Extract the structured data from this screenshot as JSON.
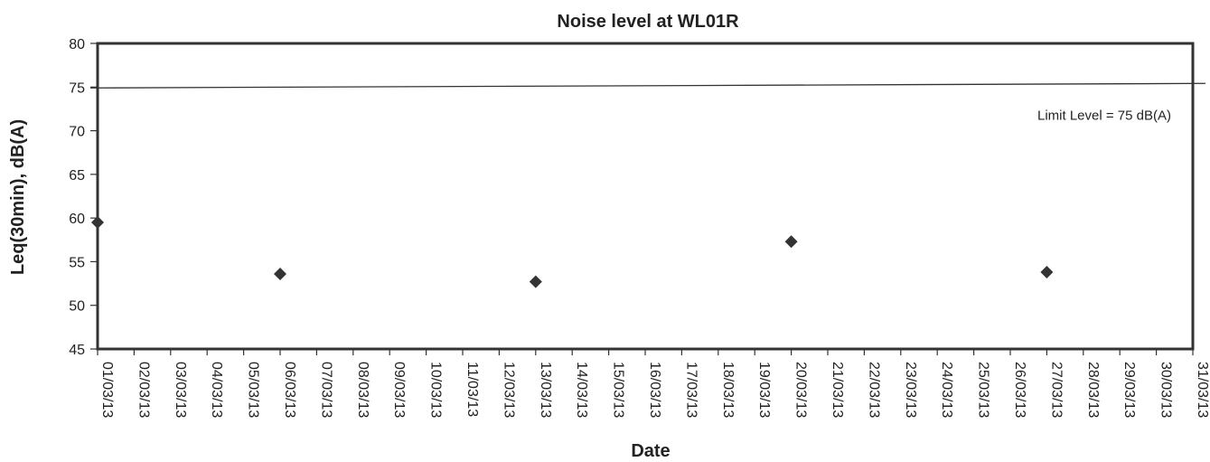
{
  "chart_data": {
    "type": "scatter",
    "title": "Noise level at WL01R",
    "xlabel": "Date",
    "ylabel": "Leq(30min), dB(A)",
    "ylim": [
      45,
      80
    ],
    "yticks": [
      45,
      50,
      55,
      60,
      65,
      70,
      75,
      80
    ],
    "x_categories": [
      "01/03/13",
      "02/03/13",
      "03/03/13",
      "04/03/13",
      "05/03/13",
      "06/03/13",
      "07/03/13",
      "08/03/13",
      "09/03/13",
      "10/03/13",
      "11/03/13",
      "12/03/13",
      "13/03/13",
      "14/03/13",
      "15/03/13",
      "16/03/13",
      "17/03/13",
      "18/03/13",
      "19/03/13",
      "20/03/13",
      "21/03/13",
      "22/03/13",
      "23/03/13",
      "24/03/13",
      "25/03/13",
      "26/03/13",
      "27/03/13",
      "28/03/13",
      "29/03/13",
      "30/03/13",
      "31/03/13"
    ],
    "series": [
      {
        "points": [
          {
            "x": "01/03/13",
            "y": 59.5
          },
          {
            "x": "06/03/13",
            "y": 53.6
          },
          {
            "x": "13/03/13",
            "y": 52.7
          },
          {
            "x": "20/03/13",
            "y": 57.3
          },
          {
            "x": "27/03/13",
            "y": 53.8
          }
        ],
        "marker": "diamond",
        "color": "#333333"
      }
    ],
    "limit_line": {
      "y": 75,
      "label": "Limit Level = 75 dB(A)"
    },
    "grid": false,
    "legend": "none"
  }
}
